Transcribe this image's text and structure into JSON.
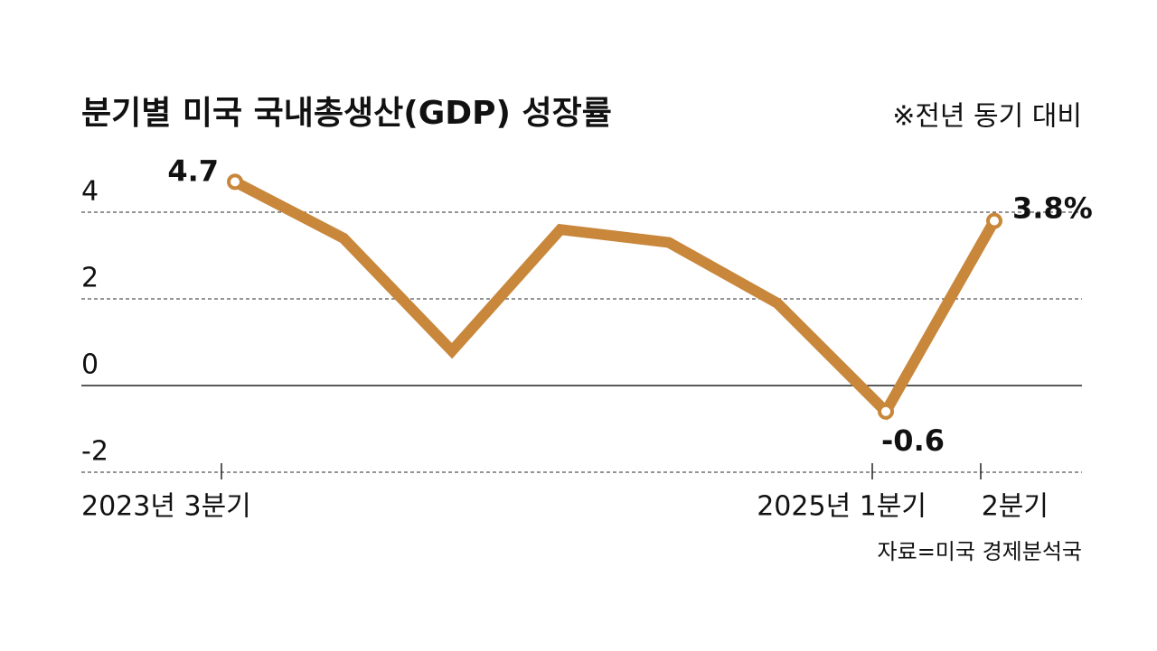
{
  "chart_data": {
    "type": "line",
    "title": "분기별 미국 국내총생산(GDP) 성장률",
    "subtitle": "※전년 동기 대비",
    "source": "자료=미국 경제분석국",
    "categories": [
      "2023년 3분기",
      null,
      null,
      null,
      null,
      null,
      "2025년 1분기",
      "2분기"
    ],
    "values": [
      4.7,
      3.4,
      0.8,
      3.6,
      3.3,
      1.9,
      -0.6,
      3.8
    ],
    "value_labels": [
      "4.7",
      null,
      null,
      null,
      null,
      null,
      "-0.6",
      "3.8%"
    ],
    "color": "#c8873a",
    "ylim": [
      -2,
      5
    ],
    "yticks": [
      -2,
      0,
      2,
      4
    ],
    "grid": true
  }
}
